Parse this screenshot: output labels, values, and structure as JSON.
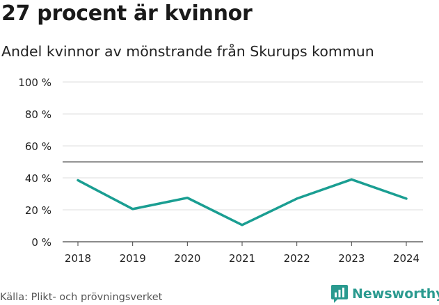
{
  "header": {
    "title": "27 procent är kvinnor",
    "subtitle": "Andel kvinnor av mönstrande från Skurups kommun"
  },
  "footer": {
    "source": "Källa: Plikt- och prövningsverket",
    "brand": "Newsworthy"
  },
  "colors": {
    "line": "#1a9e92",
    "brand": "#2a9a8f",
    "grid": "#dddddd",
    "reference": "#555555"
  },
  "chart_data": {
    "type": "line",
    "title": "27 procent är kvinnor",
    "subtitle": "Andel kvinnor av mönstrande från Skurups kommun",
    "categories": [
      "2018",
      "2019",
      "2020",
      "2021",
      "2022",
      "2023",
      "2024"
    ],
    "series": [
      {
        "values": [
          38.5,
          20.5,
          27.5,
          10.5,
          27,
          39,
          27
        ]
      }
    ],
    "y_ticks": [
      0,
      20,
      40,
      60,
      80,
      100
    ],
    "y_tick_labels": [
      "0 %",
      "20 %",
      "40 %",
      "60 %",
      "80 %",
      "100 %"
    ],
    "reference_line": 50,
    "ylim": [
      0,
      100
    ],
    "grid": true,
    "legend": "none"
  }
}
